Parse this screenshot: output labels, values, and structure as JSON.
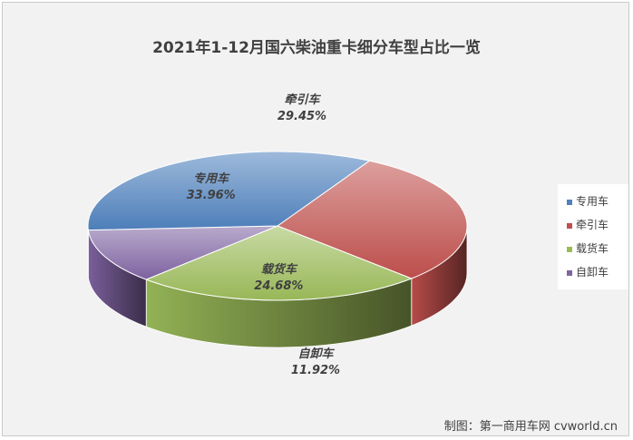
{
  "chart_data": {
    "type": "pie",
    "title": "2021年1-12月国六柴油重卡细分车型占比一览",
    "slices": [
      {
        "name": "牵引车",
        "value": 29.45,
        "label": "29.45%",
        "color": "#c0504d"
      },
      {
        "name": "载货车",
        "value": 24.68,
        "label": "24.68%",
        "color": "#9bbb59"
      },
      {
        "name": "自卸车",
        "value": 11.92,
        "label": "11.92%",
        "color": "#8064a2"
      },
      {
        "name": "专用车",
        "value": 33.96,
        "label": "33.96%",
        "color": "#4f81bd"
      }
    ],
    "legend": {
      "position": "right",
      "items": [
        "专用车",
        "牵引车",
        "载货车",
        "自卸车"
      ]
    }
  },
  "source_note": "制图：第一商用车网 cvworld.cn"
}
